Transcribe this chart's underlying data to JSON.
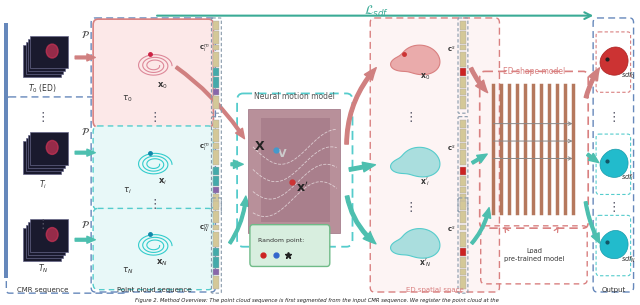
{
  "fig_width": 6.4,
  "fig_height": 3.05,
  "dpi": 100,
  "background": "#ffffff",
  "loss_label": "$\\mathcal{L}_{sdf}$",
  "neural_label": "Neural motion model",
  "ed_shape_label": "ED shape model",
  "load_label": "Load\npre-trained model",
  "random_label": "Random point:",
  "caption_text": "Figure 2. Method Overview: The point cloud sequence is first segmented from the input CMR sequence. We register the point cloud at the",
  "colors": {
    "pink_bg": "#fce8e8",
    "pink_border": "#d98080",
    "pink_arrow": "#d08080",
    "teal_border": "#55cccc",
    "teal_fill": "#e8f8f8",
    "teal_dark": "#3aab96",
    "teal_arrow": "#4dbfaf",
    "blue_border": "#6688bb",
    "blue_border2": "#8899cc",
    "brown_line": "#a86040",
    "red_bar": "#cc2222",
    "beige_bar": "#d4c898",
    "teal_bar": "#44aaaa",
    "purple_bar": "#8866aa",
    "neural_bg1": "#b8909a",
    "neural_bg2": "#9b7080",
    "green_bg": "#d8eedf",
    "green_border": "#70bb88",
    "caption_color": "#222222"
  }
}
